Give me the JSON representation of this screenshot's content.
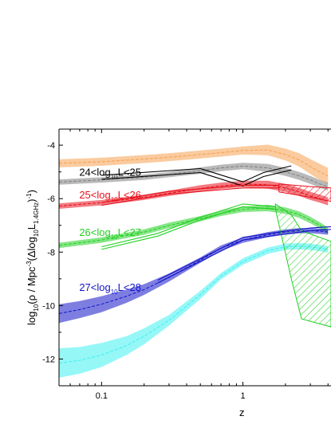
{
  "chart_data": {
    "type": "line",
    "xlabel": "z",
    "ylabel_parts": {
      "a": "log",
      "a_sub": "10",
      "b": "(ρ / Mpc",
      "b_sup": "-3",
      "c": "(Δlog",
      "c_sub": "10",
      "d": "L",
      "d_sub": "1.4GHz",
      "e": ")",
      "e_sup": "-1",
      "f": ")"
    },
    "x_scale": "log",
    "xlim": [
      0.05,
      4.2
    ],
    "ylim": [
      -13,
      -3.4
    ],
    "x_ticks": [
      {
        "value": 0.1,
        "label": "0.1"
      },
      {
        "value": 1,
        "label": "1"
      }
    ],
    "y_ticks": [
      {
        "value": -4,
        "label": "-4"
      },
      {
        "value": -6,
        "label": "-6"
      },
      {
        "value": -8,
        "label": "-8"
      },
      {
        "value": -10,
        "label": "-10"
      },
      {
        "value": -12,
        "label": "-12"
      }
    ],
    "annotations": [
      {
        "pre": "24<log",
        "sub": "10",
        "post": "L<25",
        "x": 0.055,
        "y": -5.15,
        "color": "#000000"
      },
      {
        "pre": "25<log",
        "sub": "10",
        "post": "L<26",
        "x": 0.055,
        "y": -6.0,
        "color": "#e8101c"
      },
      {
        "pre": "26<log",
        "sub": "10",
        "post": "L<27",
        "x": 0.055,
        "y": -7.4,
        "color": "#22d022"
      },
      {
        "pre": "27<log",
        "sub": "10",
        "post": "L<28",
        "x": 0.055,
        "y": -9.45,
        "color": "#1414c8"
      }
    ],
    "series": [
      {
        "color": "#f5a050",
        "x": [
          0.05,
          0.1,
          0.2,
          0.3,
          0.5,
          0.7,
          1.0,
          1.5,
          2.0,
          2.5,
          3.0,
          3.5,
          4.0
        ],
        "y": [
          -4.68,
          -4.62,
          -4.52,
          -4.45,
          -4.35,
          -4.28,
          -4.2,
          -4.18,
          -4.35,
          -4.55,
          -4.8,
          -5.0,
          -5.15
        ],
        "err": [
          0.15,
          0.15,
          0.15,
          0.15,
          0.15,
          0.15,
          0.15,
          0.2,
          0.22,
          0.25,
          0.28,
          0.3,
          0.3
        ]
      },
      {
        "color": "#808080",
        "x": [
          0.05,
          0.1,
          0.2,
          0.3,
          0.5,
          0.7,
          1.0,
          1.5,
          2.0,
          2.5,
          3.0,
          3.5,
          4.0
        ],
        "y": [
          -5.38,
          -5.3,
          -5.2,
          -5.1,
          -4.95,
          -4.85,
          -4.78,
          -4.85,
          -5.0,
          -5.15,
          -5.3,
          -5.45,
          -5.55
        ],
        "err": [
          0.1,
          0.1,
          0.1,
          0.1,
          0.12,
          0.12,
          0.12,
          0.15,
          0.15,
          0.15,
          0.15,
          0.15,
          0.15
        ]
      },
      {
        "color": "#e8101c",
        "x": [
          0.05,
          0.1,
          0.2,
          0.3,
          0.5,
          0.7,
          1.0,
          1.5,
          2.0,
          2.5,
          3.0,
          3.5,
          4.0
        ],
        "y": [
          -6.28,
          -6.15,
          -5.95,
          -5.8,
          -5.62,
          -5.52,
          -5.45,
          -5.48,
          -5.6,
          -5.75,
          -5.9,
          -6.0,
          -6.1
        ],
        "err": [
          0.1,
          0.1,
          0.1,
          0.1,
          0.12,
          0.12,
          0.12,
          0.15,
          0.15,
          0.15,
          0.15,
          0.15,
          0.15
        ]
      },
      {
        "color": "#22d022",
        "x": [
          0.05,
          0.1,
          0.2,
          0.3,
          0.5,
          0.7,
          1.0,
          1.5,
          2.0,
          2.5,
          3.0,
          3.5,
          4.0
        ],
        "y": [
          -7.75,
          -7.55,
          -7.25,
          -7.0,
          -6.75,
          -6.55,
          -6.4,
          -6.35,
          -6.45,
          -6.6,
          -6.8,
          -7.0,
          -7.2
        ],
        "err": [
          0.1,
          0.1,
          0.1,
          0.1,
          0.1,
          0.1,
          0.1,
          0.12,
          0.12,
          0.12,
          0.12,
          0.12,
          0.12
        ]
      },
      {
        "color": "#1414c8",
        "x": [
          0.05,
          0.07,
          0.1,
          0.15,
          0.2,
          0.3,
          0.5,
          0.7,
          1.0,
          1.5,
          2.0,
          2.5,
          3.0,
          3.5,
          4.0
        ],
        "y": [
          -10.3,
          -10.15,
          -9.95,
          -9.65,
          -9.4,
          -8.95,
          -8.3,
          -7.85,
          -7.55,
          -7.35,
          -7.25,
          -7.2,
          -7.2,
          -7.22,
          -7.25
        ],
        "err": [
          0.35,
          0.32,
          0.3,
          0.25,
          0.2,
          0.15,
          0.1,
          0.1,
          0.1,
          0.1,
          0.1,
          0.1,
          0.1,
          0.1,
          0.1
        ]
      },
      {
        "color": "#40f0f0",
        "x": [
          0.05,
          0.07,
          0.1,
          0.15,
          0.2,
          0.3,
          0.5,
          0.7,
          1.0,
          1.5,
          2.0,
          2.5,
          3.0,
          3.5,
          4.0
        ],
        "y": [
          -12.15,
          -12.05,
          -11.85,
          -11.5,
          -11.15,
          -10.55,
          -9.6,
          -8.9,
          -8.35,
          -7.95,
          -7.8,
          -7.78,
          -7.8,
          -7.85,
          -7.9
        ],
        "err": [
          0.55,
          0.5,
          0.45,
          0.35,
          0.3,
          0.2,
          0.15,
          0.12,
          0.12,
          0.12,
          0.12,
          0.12,
          0.12,
          0.12,
          0.12
        ]
      }
    ],
    "binned": [
      {
        "color": "#000000",
        "x": [
          0.1,
          0.5,
          1.0,
          1.4,
          2.2
        ],
        "y": [
          -5.2,
          -4.95,
          -5.45,
          -5.1,
          -4.85
        ],
        "offset": 0.15
      },
      {
        "color": "#e8101c",
        "x": [
          0.1,
          0.3,
          1.0,
          1.8
        ],
        "y": [
          -6.2,
          -5.78,
          -5.55,
          -5.55
        ],
        "offset": 0.1,
        "hatch": {
          "x": [
            1.8,
            3.0,
            4.2
          ],
          "lo": [
            -5.75,
            -5.95,
            -6.1
          ],
          "hi": [
            -5.45,
            -5.55,
            -5.6
          ]
        }
      },
      {
        "color": "#22d022",
        "x": [
          0.1,
          0.25,
          0.5,
          1.0,
          1.7
        ],
        "y": [
          -7.85,
          -7.35,
          -6.75,
          -6.25,
          -6.35
        ],
        "offset": 0.1,
        "hatch": {
          "x": [
            1.7,
            2.2,
            2.6,
            4.2
          ],
          "lo": [
            -6.4,
            -9.0,
            -10.5,
            -10.8
          ],
          "hi": [
            -6.2,
            -6.6,
            -7.2,
            -7.6
          ]
        }
      },
      {
        "color": "#1414c8",
        "x": [
          0.25,
          0.5,
          1.0,
          1.8,
          3.0,
          4.2
        ],
        "y": [
          -9.1,
          -8.3,
          -7.5,
          -7.3,
          -7.15,
          -7.1
        ],
        "offset": 0.1
      }
    ]
  }
}
